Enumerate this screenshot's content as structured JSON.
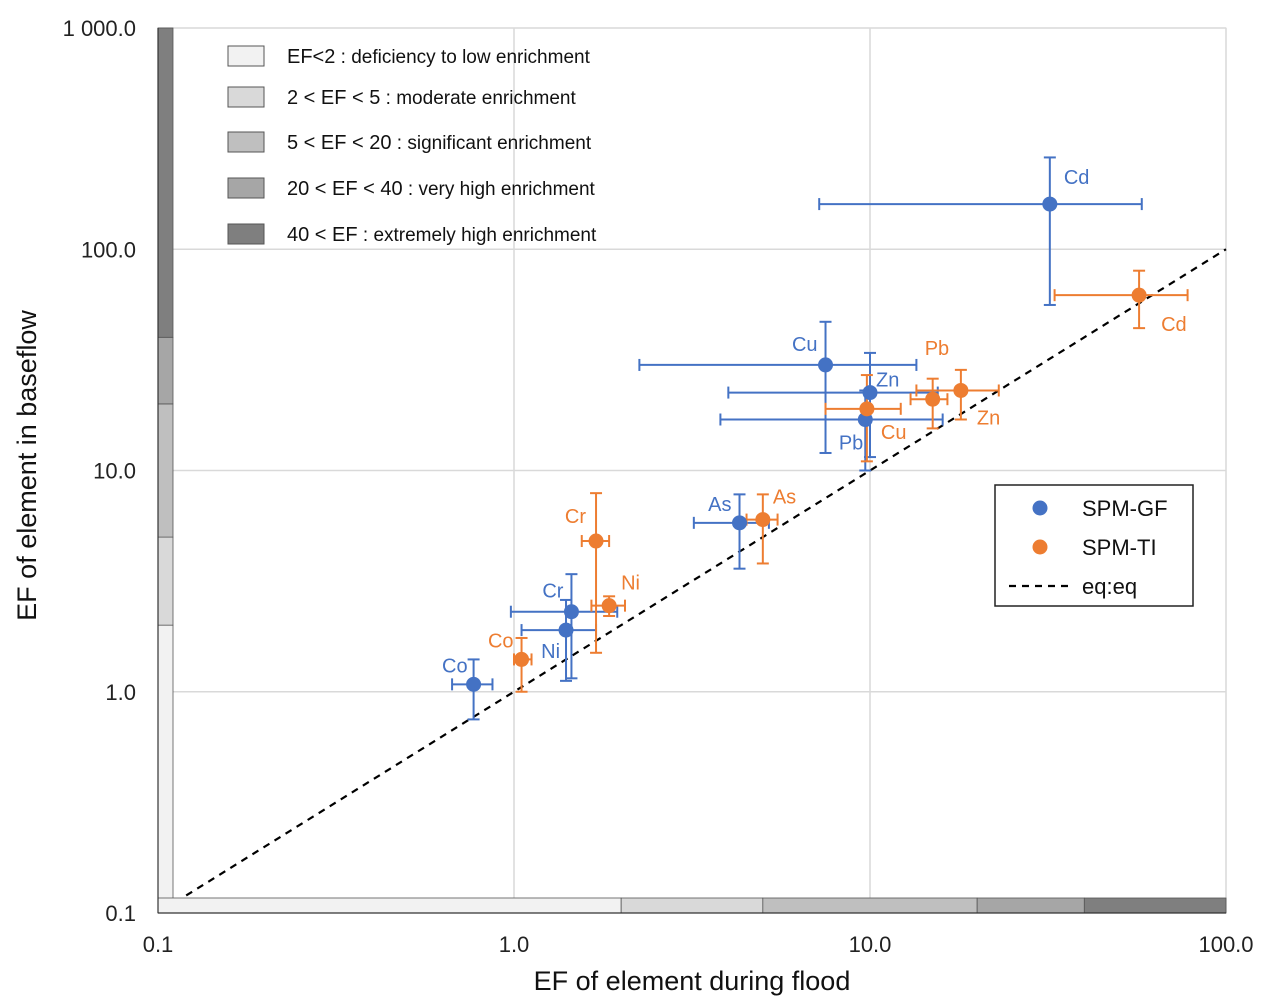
{
  "chart_data": {
    "type": "scatter",
    "title": "",
    "xlabel": "EF of element during flood",
    "ylabel": "EF of element in baseflow",
    "x_scale": "log",
    "y_scale": "log",
    "xlim": [
      0.1,
      100
    ],
    "ylim": [
      0.1,
      1000
    ],
    "x_ticks": [
      0.1,
      1,
      10,
      100
    ],
    "x_tick_labels": [
      "0.1",
      "1.0",
      "10.0",
      "100.0"
    ],
    "y_ticks": [
      0.1,
      1,
      10,
      100,
      1000
    ],
    "y_tick_labels": [
      "0.1",
      "1.0",
      "10.0",
      "100.0",
      "1 000.0"
    ],
    "grid": true,
    "legend_position": "right",
    "colors": {
      "SPM-GF": "#4472C4",
      "SPM-TI": "#ED7D31",
      "eq:eq": "#000000"
    },
    "series": [
      {
        "name": "SPM-GF",
        "points": [
          {
            "label": "Cd",
            "x": 32,
            "y": 160,
            "x_err": [
              7.2,
              58
            ],
            "y_err": [
              56,
              260
            ]
          },
          {
            "label": "Cu",
            "x": 7.5,
            "y": 30,
            "x_err": [
              2.25,
              13.5
            ],
            "y_err": [
              12,
              47
            ]
          },
          {
            "label": "Zn",
            "x": 10,
            "y": 22.5,
            "x_err": [
              4,
              15.5
            ],
            "y_err": [
              11.5,
              34
            ]
          },
          {
            "label": "Pb",
            "x": 9.7,
            "y": 17,
            "x_err": [
              3.8,
              16
            ],
            "y_err": [
              10,
              23
            ]
          },
          {
            "label": "As",
            "x": 4.3,
            "y": 5.8,
            "x_err": [
              3.2,
              5.2
            ],
            "y_err": [
              3.6,
              7.8
            ]
          },
          {
            "label": "Cr",
            "x": 1.45,
            "y": 2.3,
            "x_err": [
              0.98,
              1.95
            ],
            "y_err": [
              1.15,
              3.4
            ]
          },
          {
            "label": "Ni",
            "x": 1.4,
            "y": 1.9,
            "x_err": [
              1.05,
              1.7
            ],
            "y_err": [
              1.12,
              2.6
            ]
          },
          {
            "label": "Co",
            "x": 0.77,
            "y": 1.08,
            "x_err": [
              0.67,
              0.87
            ],
            "y_err": [
              0.75,
              1.4
            ]
          }
        ]
      },
      {
        "name": "SPM-TI",
        "points": [
          {
            "label": "Cd",
            "x": 57,
            "y": 62,
            "x_err": [
              33,
              78
            ],
            "y_err": [
              44,
              80
            ]
          },
          {
            "label": "Pb",
            "x": 15,
            "y": 21,
            "x_err": [
              13,
              16.5
            ],
            "y_err": [
              15.5,
              26
            ]
          },
          {
            "label": "Zn",
            "x": 18,
            "y": 23,
            "x_err": [
              13.5,
              23
            ],
            "y_err": [
              17,
              28.5
            ]
          },
          {
            "label": "Cu",
            "x": 9.8,
            "y": 19,
            "x_err": [
              7.5,
              12.2
            ],
            "y_err": [
              11,
              27
            ]
          },
          {
            "label": "As",
            "x": 5,
            "y": 6,
            "x_err": [
              4.5,
              5.5
            ],
            "y_err": [
              3.8,
              7.8
            ]
          },
          {
            "label": "Cr",
            "x": 1.7,
            "y": 4.8,
            "x_err": [
              1.55,
              1.85
            ],
            "y_err": [
              1.5,
              7.9
            ]
          },
          {
            "label": "Ni",
            "x": 1.85,
            "y": 2.45,
            "x_err": [
              1.65,
              2.05
            ],
            "y_err": [
              2.2,
              2.7
            ]
          },
          {
            "label": "Co",
            "x": 1.05,
            "y": 1.4,
            "x_err": [
              1,
              1.12
            ],
            "y_err": [
              1,
              1.75
            ]
          }
        ]
      }
    ],
    "reference_line": {
      "name": "eq:eq",
      "style": "dashed",
      "x": [
        0.12,
        100
      ],
      "y": [
        0.12,
        100
      ]
    },
    "enrichment_classes": [
      {
        "range": [
          0.1,
          2
        ],
        "label": "EF<2",
        "desc": "deficiency to low enrichment",
        "color": "#F2F2F2"
      },
      {
        "range": [
          2,
          5
        ],
        "label": "2 < EF < 5",
        "desc": "moderate enrichment",
        "color": "#D9D9D9"
      },
      {
        "range": [
          5,
          20
        ],
        "label": "5 < EF < 20",
        "desc": "significant enrichment",
        "color": "#BFBFBF"
      },
      {
        "range": [
          20,
          40
        ],
        "label": "20 < EF < 40",
        "desc": "very high enrichment",
        "color": "#A6A6A6"
      },
      {
        "range": [
          40,
          1000
        ],
        "label": "40 < EF",
        "desc": "extremely high enrichment",
        "color": "#7F7F7F"
      }
    ]
  }
}
